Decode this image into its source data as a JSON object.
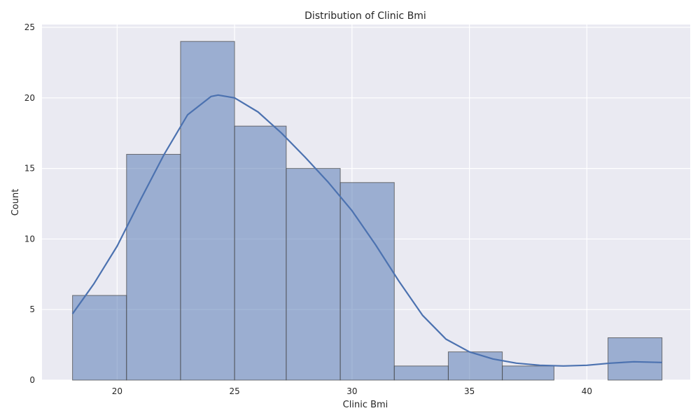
{
  "chart_data": {
    "type": "bar",
    "subtype": "histogram_with_kde",
    "title": "Distribution of Clinic Bmi",
    "xlabel": "Clinic Bmi",
    "ylabel": "Count",
    "xlim": [
      16.8,
      44.4
    ],
    "ylim": [
      0,
      25.2
    ],
    "xticks": [
      20,
      25,
      30,
      35,
      40
    ],
    "yticks": [
      0,
      5,
      10,
      15,
      20,
      25
    ],
    "bins": [
      {
        "x0": 18.1,
        "x1": 20.4,
        "count": 6
      },
      {
        "x0": 20.4,
        "x1": 22.7,
        "count": 16
      },
      {
        "x0": 22.7,
        "x1": 25.0,
        "count": 24
      },
      {
        "x0": 25.0,
        "x1": 27.2,
        "count": 18
      },
      {
        "x0": 27.2,
        "x1": 29.5,
        "count": 15
      },
      {
        "x0": 29.5,
        "x1": 31.8,
        "count": 14
      },
      {
        "x0": 31.8,
        "x1": 34.1,
        "count": 1
      },
      {
        "x0": 34.1,
        "x1": 36.4,
        "count": 2
      },
      {
        "x0": 36.4,
        "x1": 38.6,
        "count": 1
      },
      {
        "x0": 38.6,
        "x1": 40.9,
        "count": 0
      },
      {
        "x0": 40.9,
        "x1": 43.2,
        "count": 3
      }
    ],
    "kde": {
      "x": [
        18.1,
        19,
        20,
        21,
        22,
        23,
        24,
        24.3,
        25,
        26,
        27,
        28,
        29,
        30,
        31,
        32,
        33,
        34,
        35,
        36,
        37,
        38,
        39,
        40,
        41,
        42,
        43.2
      ],
      "y": [
        4.7,
        6.8,
        9.5,
        12.8,
        16.0,
        18.8,
        20.1,
        20.2,
        20.0,
        19.0,
        17.5,
        15.8,
        14.0,
        12.0,
        9.6,
        7.0,
        4.6,
        2.9,
        2.0,
        1.5,
        1.2,
        1.05,
        1.0,
        1.05,
        1.2,
        1.3,
        1.25
      ]
    },
    "colors": {
      "bar_fill": "#4c72b0",
      "bar_edge": "#4a4a4a",
      "kde_line": "#4c72b0",
      "plot_background": "#eaeaf2",
      "grid": "#ffffff"
    },
    "grid": true,
    "legend": "none"
  }
}
